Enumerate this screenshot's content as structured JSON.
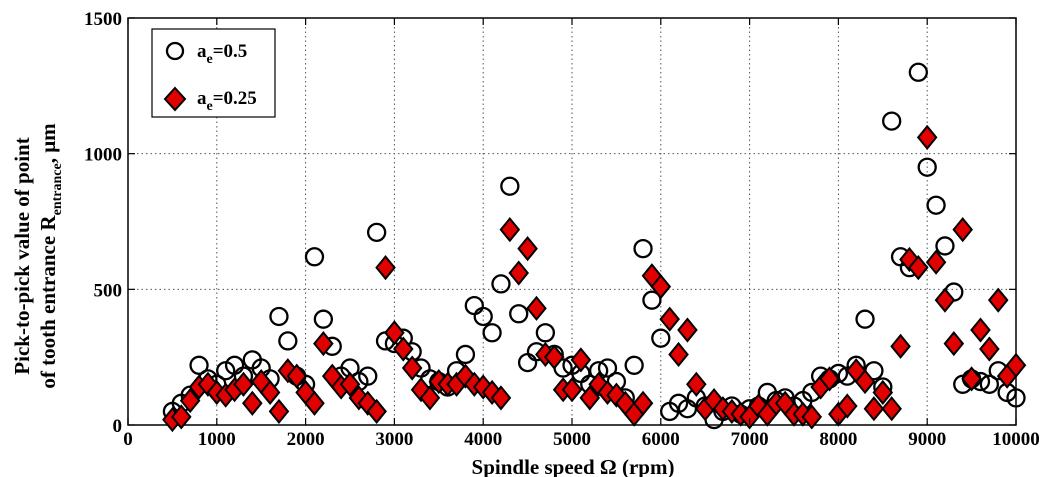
{
  "chart_data": {
    "type": "scatter",
    "xlabel": "Spindle speed Ω (rpm)",
    "ylabel_line1": "Pick-to-pick value of point",
    "ylabel_line2_main": "of tooth entrance R",
    "ylabel_line2_sub": "entrance",
    "ylabel_line2_unit": ", μm",
    "xlim": [
      0,
      10000
    ],
    "ylim": [
      0,
      1500
    ],
    "x_ticks": [
      "0",
      "1000",
      "2000",
      "3000",
      "4000",
      "5000",
      "6000",
      "7000",
      "8000",
      "9000",
      "10000"
    ],
    "y_ticks": [
      "0",
      "500",
      "1000",
      "1500"
    ],
    "grid": true,
    "legend_position": "top-left",
    "series": [
      {
        "name_main": "a",
        "name_sub": "e",
        "name_rest": "=0.5",
        "marker": "circle",
        "color": "#000000",
        "fill": "none",
        "points": [
          [
            500,
            50
          ],
          [
            600,
            80
          ],
          [
            700,
            110
          ],
          [
            800,
            220
          ],
          [
            900,
            170
          ],
          [
            1000,
            150
          ],
          [
            1100,
            200
          ],
          [
            1200,
            220
          ],
          [
            1300,
            180
          ],
          [
            1400,
            240
          ],
          [
            1500,
            210
          ],
          [
            1600,
            170
          ],
          [
            1700,
            400
          ],
          [
            1800,
            310
          ],
          [
            1900,
            180
          ],
          [
            2000,
            150
          ],
          [
            2100,
            620
          ],
          [
            2200,
            390
          ],
          [
            2300,
            290
          ],
          [
            2400,
            180
          ],
          [
            2500,
            210
          ],
          [
            2600,
            160
          ],
          [
            2700,
            180
          ],
          [
            2800,
            710
          ],
          [
            2900,
            310
          ],
          [
            3000,
            300
          ],
          [
            3100,
            320
          ],
          [
            3200,
            270
          ],
          [
            3300,
            210
          ],
          [
            3400,
            170
          ],
          [
            3500,
            160
          ],
          [
            3600,
            140
          ],
          [
            3700,
            200
          ],
          [
            3800,
            260
          ],
          [
            3900,
            440
          ],
          [
            4000,
            400
          ],
          [
            4100,
            340
          ],
          [
            4200,
            520
          ],
          [
            4300,
            880
          ],
          [
            4400,
            410
          ],
          [
            4500,
            230
          ],
          [
            4600,
            270
          ],
          [
            4700,
            340
          ],
          [
            4800,
            260
          ],
          [
            4900,
            210
          ],
          [
            5000,
            220
          ],
          [
            5100,
            190
          ],
          [
            5200,
            150
          ],
          [
            5300,
            200
          ],
          [
            5400,
            210
          ],
          [
            5500,
            160
          ],
          [
            5600,
            100
          ],
          [
            5700,
            220
          ],
          [
            5800,
            650
          ],
          [
            5900,
            460
          ],
          [
            6000,
            320
          ],
          [
            6100,
            50
          ],
          [
            6200,
            80
          ],
          [
            6300,
            60
          ],
          [
            6400,
            100
          ],
          [
            6500,
            70
          ],
          [
            6600,
            20
          ],
          [
            6700,
            50
          ],
          [
            6800,
            70
          ],
          [
            6900,
            40
          ],
          [
            7000,
            60
          ],
          [
            7100,
            70
          ],
          [
            7200,
            120
          ],
          [
            7300,
            90
          ],
          [
            7400,
            100
          ],
          [
            7500,
            70
          ],
          [
            7600,
            90
          ],
          [
            7700,
            120
          ],
          [
            7800,
            180
          ],
          [
            7900,
            170
          ],
          [
            8000,
            190
          ],
          [
            8100,
            180
          ],
          [
            8200,
            220
          ],
          [
            8300,
            390
          ],
          [
            8400,
            200
          ],
          [
            8500,
            140
          ],
          [
            8600,
            1120
          ],
          [
            8700,
            620
          ],
          [
            8800,
            580
          ],
          [
            8900,
            1300
          ],
          [
            9000,
            950
          ],
          [
            9100,
            810
          ],
          [
            9200,
            660
          ],
          [
            9300,
            490
          ],
          [
            9400,
            150
          ],
          [
            9500,
            170
          ],
          [
            9600,
            160
          ],
          [
            9700,
            150
          ],
          [
            9800,
            200
          ],
          [
            9900,
            120
          ],
          [
            10000,
            100
          ]
        ]
      },
      {
        "name_main": "a",
        "name_sub": "e",
        "name_rest": "=0.25",
        "marker": "diamond",
        "color": "#e00000",
        "fill": "#e00000",
        "points": [
          [
            500,
            20
          ],
          [
            600,
            30
          ],
          [
            700,
            90
          ],
          [
            800,
            140
          ],
          [
            900,
            150
          ],
          [
            1000,
            120
          ],
          [
            1100,
            110
          ],
          [
            1200,
            130
          ],
          [
            1300,
            150
          ],
          [
            1400,
            80
          ],
          [
            1500,
            160
          ],
          [
            1600,
            120
          ],
          [
            1700,
            50
          ],
          [
            1800,
            200
          ],
          [
            1900,
            180
          ],
          [
            2000,
            120
          ],
          [
            2100,
            80
          ],
          [
            2200,
            300
          ],
          [
            2300,
            180
          ],
          [
            2400,
            140
          ],
          [
            2500,
            150
          ],
          [
            2600,
            100
          ],
          [
            2700,
            80
          ],
          [
            2800,
            50
          ],
          [
            2900,
            580
          ],
          [
            3000,
            340
          ],
          [
            3100,
            280
          ],
          [
            3200,
            210
          ],
          [
            3300,
            130
          ],
          [
            3400,
            100
          ],
          [
            3500,
            160
          ],
          [
            3600,
            150
          ],
          [
            3700,
            150
          ],
          [
            3800,
            180
          ],
          [
            3900,
            150
          ],
          [
            4000,
            140
          ],
          [
            4100,
            120
          ],
          [
            4200,
            100
          ],
          [
            4300,
            720
          ],
          [
            4400,
            560
          ],
          [
            4500,
            650
          ],
          [
            4600,
            430
          ],
          [
            4700,
            260
          ],
          [
            4800,
            250
          ],
          [
            4900,
            130
          ],
          [
            5000,
            130
          ],
          [
            5100,
            240
          ],
          [
            5200,
            100
          ],
          [
            5300,
            150
          ],
          [
            5400,
            120
          ],
          [
            5500,
            110
          ],
          [
            5600,
            80
          ],
          [
            5700,
            40
          ],
          [
            5800,
            80
          ],
          [
            5900,
            550
          ],
          [
            6000,
            510
          ],
          [
            6100,
            390
          ],
          [
            6200,
            260
          ],
          [
            6300,
            350
          ],
          [
            6400,
            150
          ],
          [
            6500,
            60
          ],
          [
            6600,
            90
          ],
          [
            6700,
            60
          ],
          [
            6800,
            50
          ],
          [
            6900,
            40
          ],
          [
            7000,
            30
          ],
          [
            7100,
            70
          ],
          [
            7200,
            40
          ],
          [
            7300,
            80
          ],
          [
            7400,
            80
          ],
          [
            7500,
            40
          ],
          [
            7600,
            40
          ],
          [
            7700,
            30
          ],
          [
            7800,
            140
          ],
          [
            7900,
            170
          ],
          [
            8000,
            40
          ],
          [
            8100,
            70
          ],
          [
            8200,
            200
          ],
          [
            8300,
            160
          ],
          [
            8400,
            60
          ],
          [
            8500,
            120
          ],
          [
            8600,
            60
          ],
          [
            8700,
            290
          ],
          [
            8800,
            610
          ],
          [
            8900,
            580
          ],
          [
            9000,
            1060
          ],
          [
            9100,
            600
          ],
          [
            9200,
            460
          ],
          [
            9300,
            300
          ],
          [
            9400,
            720
          ],
          [
            9500,
            170
          ],
          [
            9600,
            350
          ],
          [
            9700,
            280
          ],
          [
            9800,
            460
          ],
          [
            9900,
            180
          ],
          [
            10000,
            220
          ]
        ]
      }
    ]
  }
}
